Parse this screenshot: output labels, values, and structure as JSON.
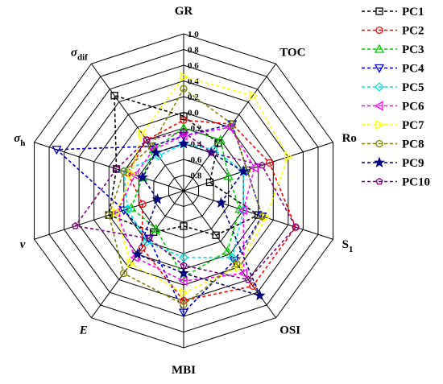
{
  "chart_data": {
    "type": "radar",
    "title": "",
    "axes": [
      {
        "name": "GR",
        "sub": ""
      },
      {
        "name": "TOC",
        "sub": ""
      },
      {
        "name": "Ro",
        "sub": ""
      },
      {
        "name": "S",
        "sub": "1"
      },
      {
        "name": "OSI",
        "sub": ""
      },
      {
        "name": "MBI",
        "sub": ""
      },
      {
        "name": "E",
        "sub": ""
      },
      {
        "name": "v",
        "sub": ""
      },
      {
        "name": "σ",
        "sub": "h"
      },
      {
        "name": "σ",
        "sub": "dif"
      }
    ],
    "rlim": [
      -1.0,
      1.0
    ],
    "ticks": [
      -0.8,
      -0.6,
      -0.4,
      -0.2,
      0.0,
      0.2,
      0.4,
      0.6,
      0.8,
      1.0
    ],
    "tick_labels": [
      "-0.8",
      "-0.6",
      "-0.4",
      "-0.2",
      "0.0",
      "0.2",
      "0.4",
      "0.6",
      "0.8",
      "1.0"
    ],
    "legend_position": "right",
    "series": [
      {
        "name": "PC1",
        "color": "#000000",
        "marker": "square",
        "values": [
          -0.05,
          -0.25,
          -0.65,
          0.0,
          -0.3,
          -0.55,
          -0.35,
          0.0,
          -0.1,
          0.5
        ]
      },
      {
        "name": "PC2",
        "color": "#ff0000",
        "marker": "circle",
        "values": [
          -0.1,
          0.05,
          0.15,
          0.5,
          0.5,
          0.4,
          -0.1,
          -0.45,
          -0.25,
          -0.2
        ]
      },
      {
        "name": "PC3",
        "color": "#00cc00",
        "marker": "triangle-up",
        "values": [
          -0.2,
          -0.2,
          -0.4,
          -0.25,
          -0.05,
          0.1,
          -0.4,
          -0.3,
          -0.45,
          -0.35
        ]
      },
      {
        "name": "PC4",
        "color": "#0000cc",
        "marker": "triangle-down",
        "values": [
          -0.3,
          0.05,
          -0.15,
          0.05,
          0.1,
          0.55,
          -0.25,
          -0.2,
          0.7,
          -0.3
        ]
      },
      {
        "name": "PC5",
        "color": "#00e0e0",
        "marker": "diamond",
        "values": [
          -0.4,
          -0.35,
          -0.2,
          -0.2,
          0.05,
          -0.15,
          -0.2,
          -0.25,
          -0.2,
          -0.45
        ]
      },
      {
        "name": "PC6",
        "color": "#ff00ff",
        "marker": "triangle-left",
        "values": [
          -0.3,
          0.0,
          -0.05,
          -0.2,
          0.3,
          0.15,
          0.05,
          -0.1,
          -0.35,
          -0.35
        ]
      },
      {
        "name": "PC7",
        "color": "#ffff00",
        "marker": "triangle-right",
        "values": [
          0.45,
          0.5,
          0.4,
          0.1,
          0.2,
          0.3,
          0.15,
          -0.1,
          -0.3,
          -0.1
        ]
      },
      {
        "name": "PC8",
        "color": "#808000",
        "marker": "circle",
        "values": [
          0.3,
          0.05,
          -0.15,
          0.05,
          0.15,
          0.45,
          0.3,
          0.0,
          -0.2,
          -0.3
        ]
      },
      {
        "name": "PC9",
        "color": "#000080",
        "marker": "star",
        "values": [
          -0.4,
          -0.4,
          -0.2,
          -0.5,
          0.65,
          0.05,
          0.0,
          -0.65,
          -0.45,
          -0.4
        ]
      },
      {
        "name": "PC10",
        "color": "#800080",
        "marker": "pentagon",
        "values": [
          -0.25,
          -0.4,
          0.05,
          0.5,
          0.4,
          -0.05,
          -0.25,
          0.45,
          -0.1,
          -0.2
        ]
      }
    ]
  }
}
